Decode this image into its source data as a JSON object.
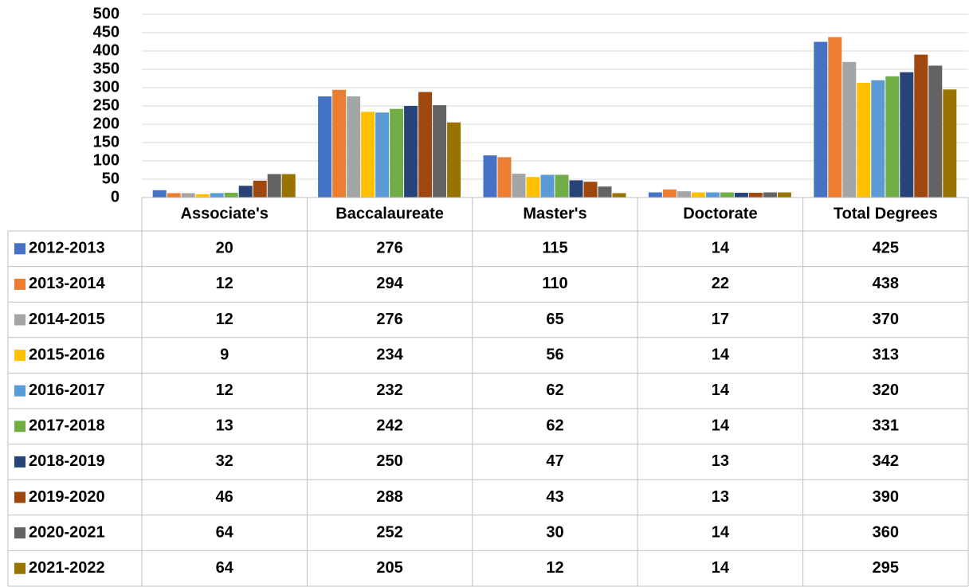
{
  "chart_data": {
    "type": "bar",
    "categories": [
      "Associate's",
      "Baccalaureate",
      "Master's",
      "Doctorate",
      "Total Degrees"
    ],
    "series": [
      {
        "name": "2012-2013",
        "color": "#4472c4",
        "values": [
          20,
          276,
          115,
          14,
          425
        ]
      },
      {
        "name": "2013-2014",
        "color": "#ed7d31",
        "values": [
          12,
          294,
          110,
          22,
          438
        ]
      },
      {
        "name": "2014-2015",
        "color": "#a5a5a5",
        "values": [
          12,
          276,
          65,
          17,
          370
        ]
      },
      {
        "name": "2015-2016",
        "color": "#ffc000",
        "values": [
          9,
          234,
          56,
          14,
          313
        ]
      },
      {
        "name": "2016-2017",
        "color": "#5b9bd5",
        "values": [
          12,
          232,
          62,
          14,
          320
        ]
      },
      {
        "name": "2017-2018",
        "color": "#70ad47",
        "values": [
          13,
          242,
          62,
          14,
          331
        ]
      },
      {
        "name": "2018-2019",
        "color": "#264478",
        "values": [
          32,
          250,
          47,
          13,
          342
        ]
      },
      {
        "name": "2019-2020",
        "color": "#9e480e",
        "values": [
          46,
          288,
          43,
          13,
          390
        ]
      },
      {
        "name": "2020-2021",
        "color": "#636363",
        "values": [
          64,
          252,
          30,
          14,
          360
        ]
      },
      {
        "name": "2021-2022",
        "color": "#997300",
        "values": [
          64,
          205,
          12,
          14,
          295
        ]
      }
    ],
    "ylim": [
      0,
      500
    ],
    "yticks": [
      0,
      50,
      100,
      150,
      200,
      250,
      300,
      350,
      400,
      450,
      500
    ],
    "grid": true
  }
}
